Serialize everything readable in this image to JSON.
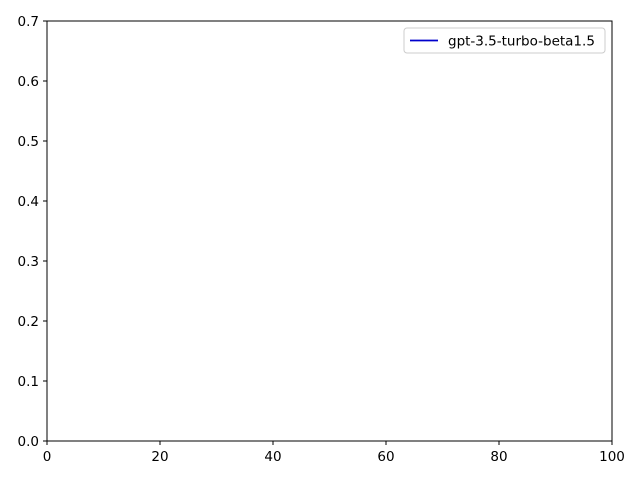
{
  "chart_data": {
    "type": "line",
    "title": "",
    "xlabel": "",
    "ylabel": "",
    "xlim": [
      0,
      100
    ],
    "ylim": [
      0,
      0.7
    ],
    "x_ticks": [
      0,
      20,
      40,
      60,
      80,
      100
    ],
    "x_tick_labels": [
      "0",
      "20",
      "40",
      "60",
      "80",
      "100"
    ],
    "y_ticks": [
      0,
      0.1,
      0.2,
      0.3,
      0.4,
      0.5,
      0.6,
      0.7
    ],
    "y_tick_labels": [
      "0.0",
      "0.1",
      "0.2",
      "0.3",
      "0.4",
      "0.5",
      "0.6",
      "0.7"
    ],
    "grid": false,
    "legend_position": "top-right",
    "series": [
      {
        "name": "gpt-3.5-turbo-beta1.5",
        "color": "#0000cc",
        "x": [],
        "y": []
      }
    ]
  }
}
